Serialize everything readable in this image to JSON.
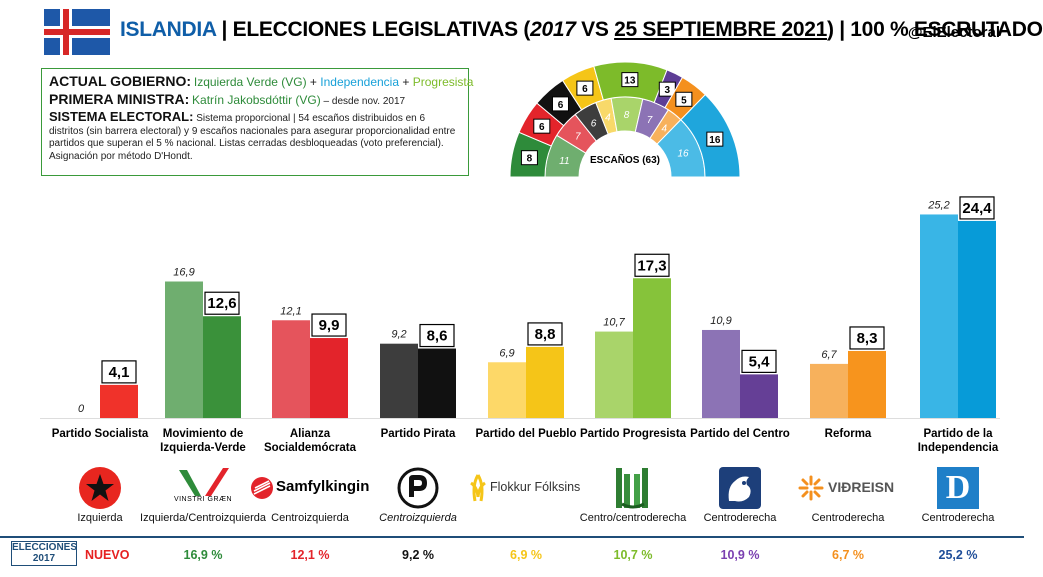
{
  "header": {
    "country": "ISLANDIA",
    "sep1": " | ",
    "title_a": "ELECCIONES LEGISLATIVAS (",
    "title_year": "2017",
    "title_vs": " VS ",
    "title_date": "25 SEPTIEMBRE 2021",
    "title_b": ") | 100 % ESCRUTADO",
    "handle": "@ElElectoral"
  },
  "info": {
    "gov_label": "ACTUAL GOBIERNO:",
    "gov_vg": "Izquierda Verde (VG)",
    "gov_plus1": " + ",
    "gov_ind": "Independencia",
    "gov_plus2": " + ",
    "gov_prog": "Progresista",
    "pm_label": "PRIMERA MINISTRA:",
    "pm_name": "Katrín Jakobsdóttir (VG)",
    "pm_since": " – desde nov. 2017",
    "sys_label": "SISTEMA ELECTORAL:",
    "sys_text": "Sistema proporcional | 54 escaños distribuidos en 6 distritos (sin barrera electoral) y 9 escaños nacionales para asegurar proporcionalidad entre partidos que superan el 5 % nacional. Listas cerradas desbloqueadas (voto preferencial). Asignación por método D'Hondt."
  },
  "hemicycle": {
    "label": "ESCAÑOS (63)",
    "parties": [
      {
        "party": "Movimiento de Izquierda-Verde",
        "s2021": 8,
        "s2017": 11,
        "color": "#2e8b3a",
        "color_in": "#6fae6f"
      },
      {
        "party": "Alianza Socialdemócrata",
        "s2021": 6,
        "s2017": 7,
        "color": "#e3242b",
        "color_in": "#e5545c"
      },
      {
        "party": "Partido Pirata",
        "s2021": 6,
        "s2017": 6,
        "color": "#111111",
        "color_in": "#3d3d3d"
      },
      {
        "party": "Partido del Pueblo",
        "s2021": 6,
        "s2017": 4,
        "color": "#f5c518",
        "color_in": "#f8d96a"
      },
      {
        "party": "Partido Progresista",
        "s2021": 13,
        "s2017": 8,
        "color": "#7dbb2a",
        "color_in": "#a9d46a"
      },
      {
        "party": "Partido del Centro",
        "s2021": 3,
        "s2017": 7,
        "color": "#5e3e96",
        "color_in": "#8c73b5"
      },
      {
        "party": "Reforma",
        "s2021": 5,
        "s2017": 4,
        "color": "#f4901e",
        "color_in": "#f7b15c"
      },
      {
        "party": "Partido de la Independencia",
        "s2021": 16,
        "s2017": 16,
        "color": "#1fa6dc",
        "color_in": "#4bbbe6"
      }
    ]
  },
  "chart_data": {
    "type": "bar",
    "categories": [
      "Partido Socialista",
      "Movimiento de Izquierda-Verde",
      "Alianza Socialdemócrata",
      "Partido Pirata",
      "Partido del Pueblo",
      "Partido Progresista",
      "Partido del Centro",
      "Reforma",
      "Partido de la Independencia"
    ],
    "series": [
      {
        "values": [
          0,
          16.9,
          12.1,
          9.2,
          6.9,
          10.7,
          10.9,
          6.7,
          25.2
        ]
      },
      {
        "values": [
          4.1,
          12.6,
          9.9,
          8.6,
          8.8,
          17.3,
          5.4,
          8.3,
          24.4
        ]
      }
    ],
    "labels_2017": [
      "0",
      "16,9",
      "12,1",
      "9,2",
      "6,9",
      "10,7",
      "10,9",
      "6,7",
      "25,2"
    ],
    "labels_2021": [
      "4,1",
      "12,6",
      "9,9",
      "8,6",
      "8,8",
      "17,3",
      "5,4",
      "8,3",
      "24,4"
    ],
    "colors_2017": [
      "#ff6b6b",
      "#6fae6f",
      "#e5545c",
      "#3d3d3d",
      "#fdd868",
      "#a9d46a",
      "#8c73b5",
      "#f7b15c",
      "#39b5e6"
    ],
    "colors_2021": [
      "#f0322a",
      "#3a913a",
      "#e3242b",
      "#111111",
      "#f5c518",
      "#86c33a",
      "#653f96",
      "#f7941d",
      "#079bd8"
    ],
    "ylim": [
      0,
      26
    ]
  },
  "parties": [
    {
      "name": "Partido Socialista",
      "ideology": "Izquierda",
      "logo_text": "",
      "ideo_italic": false
    },
    {
      "name": "Movimiento de Izquierda-Verde",
      "ideology": "Izquierda/Centroizquierda",
      "logo_text": "VINSTRI GRÆN",
      "ideo_italic": false
    },
    {
      "name": "Alianza Socialdemócrata",
      "ideology": "Centroizquierda",
      "logo_text": "Samfylkingin",
      "ideo_italic": false
    },
    {
      "name": "Partido Pirata",
      "ideology": "Centroizquierda",
      "logo_text": "",
      "ideo_italic": true
    },
    {
      "name": "Partido del Pueblo",
      "ideology": "",
      "logo_text": "Flokkur Fólksins",
      "ideo_italic": false
    },
    {
      "name": "Partido Progresista",
      "ideology": "Centro/centroderecha",
      "logo_text": "",
      "ideo_italic": false
    },
    {
      "name": "Partido del Centro",
      "ideology": "Centroderecha",
      "logo_text": "",
      "ideo_italic": false
    },
    {
      "name": "Reforma",
      "ideology": "Centroderecha",
      "logo_text": "VIÐREISN",
      "ideo_italic": false
    },
    {
      "name": "Partido de la Independencia",
      "ideology": "Centroderecha",
      "logo_text": "D",
      "ideo_italic": false
    }
  ],
  "footer": {
    "label": "ELECCIONES 2017",
    "nuevo": "NUEVO",
    "values": [
      "16,9 %",
      "12,1 %",
      "9,2 %",
      "6,9 %",
      "10,7 %",
      "10,9 %",
      "6,7 %",
      "25,2 %"
    ],
    "colors": [
      "#2e8b3a",
      "#e3242b",
      "#111111",
      "#f5c518",
      "#7dbb2a",
      "#7a3fb0",
      "#f4901e",
      "#1f4e99"
    ]
  }
}
